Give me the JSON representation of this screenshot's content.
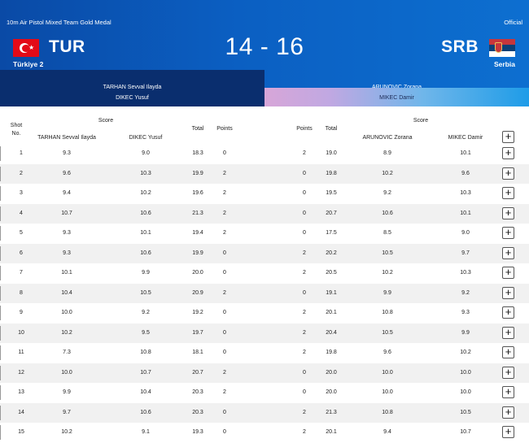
{
  "header": {
    "event_title": "10m Air Pistol Mixed Team Gold Medal",
    "official_label": "Official",
    "score": "14 - 16",
    "left_team": {
      "code": "TUR",
      "name": "Türkiye 2",
      "athletes": [
        "TARHAN Sevval Ilayda",
        "DIKEC Yusuf"
      ]
    },
    "right_team": {
      "code": "SRB",
      "name": "Serbia",
      "athletes": [
        "ARUNOVIC Zorana",
        "MIKEC Damir"
      ]
    }
  },
  "table_headers": {
    "shot_no": [
      "Shot",
      "No."
    ],
    "score": "Score",
    "athlete_left_1": "TARHAN Sevval Ilayda",
    "athlete_left_2": "DIKEC Yusuf",
    "total": "Total",
    "points": "Points",
    "athlete_right_1": "ARUNOVIC Zorana",
    "athlete_right_2": "MIKEC Damir"
  },
  "expand_symbol": "+",
  "rows": [
    {
      "shot": "1",
      "l1": "9.3",
      "l2": "9.0",
      "lt": "18.3",
      "lp": "0",
      "rp": "2",
      "rt": "19.0",
      "r1": "8.9",
      "r2": "10.1"
    },
    {
      "shot": "2",
      "l1": "9.6",
      "l2": "10.3",
      "lt": "19.9",
      "lp": "2",
      "rp": "0",
      "rt": "19.8",
      "r1": "10.2",
      "r2": "9.6"
    },
    {
      "shot": "3",
      "l1": "9.4",
      "l2": "10.2",
      "lt": "19.6",
      "lp": "2",
      "rp": "0",
      "rt": "19.5",
      "r1": "9.2",
      "r2": "10.3"
    },
    {
      "shot": "4",
      "l1": "10.7",
      "l2": "10.6",
      "lt": "21.3",
      "lp": "2",
      "rp": "0",
      "rt": "20.7",
      "r1": "10.6",
      "r2": "10.1"
    },
    {
      "shot": "5",
      "l1": "9.3",
      "l2": "10.1",
      "lt": "19.4",
      "lp": "2",
      "rp": "0",
      "rt": "17.5",
      "r1": "8.5",
      "r2": "9.0"
    },
    {
      "shot": "6",
      "l1": "9.3",
      "l2": "10.6",
      "lt": "19.9",
      "lp": "0",
      "rp": "2",
      "rt": "20.2",
      "r1": "10.5",
      "r2": "9.7"
    },
    {
      "shot": "7",
      "l1": "10.1",
      "l2": "9.9",
      "lt": "20.0",
      "lp": "0",
      "rp": "2",
      "rt": "20.5",
      "r1": "10.2",
      "r2": "10.3"
    },
    {
      "shot": "8",
      "l1": "10.4",
      "l2": "10.5",
      "lt": "20.9",
      "lp": "2",
      "rp": "0",
      "rt": "19.1",
      "r1": "9.9",
      "r2": "9.2"
    },
    {
      "shot": "9",
      "l1": "10.0",
      "l2": "9.2",
      "lt": "19.2",
      "lp": "0",
      "rp": "2",
      "rt": "20.1",
      "r1": "10.8",
      "r2": "9.3"
    },
    {
      "shot": "10",
      "l1": "10.2",
      "l2": "9.5",
      "lt": "19.7",
      "lp": "0",
      "rp": "2",
      "rt": "20.4",
      "r1": "10.5",
      "r2": "9.9"
    },
    {
      "shot": "11",
      "l1": "7.3",
      "l2": "10.8",
      "lt": "18.1",
      "lp": "0",
      "rp": "2",
      "rt": "19.8",
      "r1": "9.6",
      "r2": "10.2"
    },
    {
      "shot": "12",
      "l1": "10.0",
      "l2": "10.7",
      "lt": "20.7",
      "lp": "2",
      "rp": "0",
      "rt": "20.0",
      "r1": "10.0",
      "r2": "10.0"
    },
    {
      "shot": "13",
      "l1": "9.9",
      "l2": "10.4",
      "lt": "20.3",
      "lp": "2",
      "rp": "0",
      "rt": "20.0",
      "r1": "10.0",
      "r2": "10.0"
    },
    {
      "shot": "14",
      "l1": "9.7",
      "l2": "10.6",
      "lt": "20.3",
      "lp": "0",
      "rp": "2",
      "rt": "21.3",
      "r1": "10.8",
      "r2": "10.5"
    },
    {
      "shot": "15",
      "l1": "10.2",
      "l2": "9.1",
      "lt": "19.3",
      "lp": "0",
      "rp": "2",
      "rt": "20.1",
      "r1": "9.4",
      "r2": "10.7"
    }
  ]
}
